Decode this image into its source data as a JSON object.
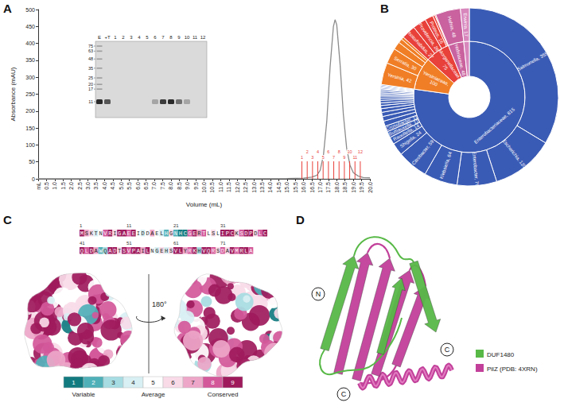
{
  "chart_data": [
    {
      "panel": "A",
      "type": "line",
      "x_label": "Volume (mL)",
      "y_label": "Absorbance (mAU)",
      "x": [
        0,
        5,
        10,
        15,
        16,
        16.5,
        16.8,
        17,
        17.2,
        17.4,
        17.6,
        17.8,
        17.9,
        18,
        18.2,
        18.4,
        18.6,
        18.8,
        19,
        19.3,
        19.6,
        20
      ],
      "values": [
        0,
        0.5,
        0.5,
        1,
        2,
        5,
        10,
        25,
        70,
        170,
        330,
        450,
        470,
        455,
        340,
        190,
        90,
        40,
        18,
        8,
        4,
        3
      ],
      "color": "#8c8c8c",
      "xlim": [
        0,
        20
      ],
      "xticks": [
        {
          "value": 0,
          "label": "mL"
        },
        0.5,
        {
          "value": 1,
          "label": "1.0"
        },
        1.5,
        {
          "value": 2,
          "label": "2.0"
        },
        2.5,
        {
          "value": 3,
          "label": "3.0"
        },
        3.5,
        {
          "value": 4,
          "label": "4.0"
        },
        4.5,
        {
          "value": 5,
          "label": "5.0"
        },
        5.5,
        {
          "value": 6,
          "label": "6.0"
        },
        6.5,
        {
          "value": 7,
          "label": "7.0"
        },
        7.5,
        {
          "value": 8,
          "label": "8.0"
        },
        8.5,
        {
          "value": 9,
          "label": "9.0"
        },
        9.5,
        {
          "value": 10,
          "label": "10.0"
        },
        10.5,
        {
          "value": 11,
          "label": "11.0"
        },
        11.5,
        {
          "value": 12,
          "label": "12.0"
        },
        12.5,
        {
          "value": 13,
          "label": "13.0"
        },
        13.5,
        {
          "value": 14,
          "label": "14.0"
        },
        14.5,
        {
          "value": 15,
          "label": "15.0"
        },
        15.5,
        {
          "value": 16,
          "label": "16.0"
        },
        16.5,
        {
          "value": 17,
          "label": "17.0"
        },
        17.5,
        {
          "value": 18,
          "label": "18.0"
        },
        18.5,
        {
          "value": 19,
          "label": "19.0"
        },
        19.5,
        {
          "value": 20,
          "label": "20.0"
        }
      ],
      "ylim": [
        0,
        500
      ],
      "yticks": [
        0,
        50,
        100,
        150,
        200,
        250,
        300,
        350,
        400,
        450,
        500
      ],
      "grid": false,
      "fractions": {
        "labels": [
          "1",
          "2",
          "3",
          "4",
          "5",
          "6",
          "7",
          "8",
          "9",
          "10",
          "11",
          "12"
        ],
        "x": [
          15.9,
          16.22,
          16.54,
          16.86,
          17.18,
          17.5,
          17.82,
          18.14,
          18.46,
          18.78,
          19.1,
          19.42
        ],
        "color": "#e8403a"
      },
      "inset_gel": {
        "lanes": [
          "E",
          "+T",
          "1",
          "2",
          "3",
          "4",
          "5",
          "6",
          "7",
          "8",
          "9",
          "10",
          "11",
          "12"
        ],
        "band_intensity": [
          1,
          0.75,
          0,
          0,
          0,
          0,
          0,
          0.3,
          0.9,
          1,
          0.6,
          0.3,
          0,
          0
        ],
        "markers": [
          75,
          63,
          48,
          35,
          25,
          20,
          17,
          11
        ]
      }
    },
    {
      "panel": "B",
      "type": "sunburst",
      "data_labels": true,
      "tree": [
        {
          "name": "Enterobacteriaceae",
          "value": 815,
          "label": "Enterobacteriaceae, 815",
          "color": "#3a5bb5",
          "children": [
            {
              "name": "Salmonella",
              "value": 355,
              "label": "Salmonella, 355"
            },
            {
              "name": "Escherichia",
              "value": 120,
              "label": "Escherichia, 120"
            },
            {
              "name": "Enterobacter",
              "value": 76,
              "label": "Enterobacter, 76"
            },
            {
              "name": "Klebsiella",
              "value": 64,
              "label": "Klebsiella, 64"
            },
            {
              "name": "Citrobacter",
              "value": 59,
              "label": "Citrobacter, 59"
            },
            {
              "name": "Shigella",
              "value": 24,
              "label": "Shigella, 24"
            },
            {
              "name": "Raoultella",
              "value": 14,
              "label": "Raoultella, 14"
            },
            {
              "name": "Buttiauxella",
              "value": 12,
              "label": "Buttiauxella, 12"
            },
            {
              "name": "Cronobacter",
              "value": 11,
              "label": "Cronobacter, 11"
            },
            {
              "name": null,
              "value": 10
            },
            {
              "name": null,
              "value": 9
            },
            {
              "name": null,
              "value": 8
            },
            {
              "name": null,
              "value": 7
            },
            {
              "name": null,
              "value": 6
            },
            {
              "name": null,
              "value": 5
            },
            {
              "name": null,
              "value": 5
            },
            {
              "name": null,
              "value": 4
            },
            {
              "name": null,
              "value": 4
            },
            {
              "name": null,
              "value": 3
            },
            {
              "name": null,
              "value": 3
            },
            {
              "name": null,
              "value": 3
            },
            {
              "name": null,
              "value": 3
            },
            {
              "name": null,
              "value": 2
            },
            {
              "name": null,
              "value": 2
            },
            {
              "name": null,
              "value": 2
            },
            {
              "name": null,
              "value": 2
            },
            {
              "name": null,
              "value": 2
            }
          ]
        },
        {
          "name": "Yersiniaceae",
          "value": 100,
          "label": "Yersiniaceae, 100",
          "color": "#f07e26",
          "children": [
            {
              "name": "Yersinia",
              "value": 42,
              "label": "Yersinia, 42"
            },
            {
              "name": "Serratia",
              "value": 30,
              "label": "Serratia, 30"
            },
            {
              "name": null,
              "value": 15
            },
            {
              "name": null,
              "value": 8
            },
            {
              "name": null,
              "value": 5
            }
          ]
        },
        {
          "name": "Morganellaceae",
          "value": 75,
          "label": "Morganellaceae, 75",
          "color": "#e8403a",
          "children": [
            {
              "name": "Photorhabdus",
              "value": 27,
              "label": "Photorhabdus, 27"
            },
            {
              "name": "Providencia",
              "value": 26,
              "label": "Providencia, 26"
            },
            {
              "name": "Proteus",
              "value": 16,
              "label": "Proteus, 16"
            },
            {
              "name": null,
              "value": 4
            },
            {
              "name": null,
              "value": 2
            }
          ]
        },
        {
          "name": "Hafniaceae",
          "value": 48,
          "label": "Hafniaceae, 48",
          "color": "#c9629f",
          "children": [
            {
              "name": "Hafnia",
              "value": 48,
              "label": "Hafnia, 48"
            }
          ]
        },
        {
          "name": null,
          "value": 17,
          "color": "#d887bd",
          "children": [
            {
              "name": "Erwinia",
              "value": 17,
              "label": "Erwinia, 17"
            }
          ]
        }
      ]
    }
  ],
  "panel_c": {
    "panel": "C",
    "position_labels": [
      1,
      11,
      21,
      31,
      41,
      51,
      61,
      71
    ],
    "sequence": "MSKTNVRIGAEEIDDAELHGNHCGERTLSLIPCKSDPDLCQLDAWQADTSVPAILNGEHSVLYRKHVQRSDAVMRLA",
    "grades": [
      9,
      7,
      6,
      4,
      5,
      8,
      9,
      6,
      9,
      9,
      8,
      9,
      5,
      4,
      5,
      7,
      5,
      4,
      2,
      6,
      2,
      1,
      1,
      8,
      9,
      7,
      8,
      5,
      6,
      5,
      9,
      9,
      9,
      6,
      8,
      9,
      9,
      6,
      8,
      9,
      9,
      8,
      9,
      7,
      2,
      3,
      9,
      9,
      6,
      9,
      8,
      9,
      9,
      7,
      9,
      5,
      4,
      6,
      4,
      6,
      9,
      9,
      7,
      8,
      9,
      3,
      9,
      9,
      8,
      6,
      8,
      6,
      9,
      8,
      9,
      9,
      8
    ],
    "rotation": "180°",
    "scale": {
      "grades": [
        1,
        2,
        3,
        4,
        5,
        6,
        7,
        8,
        9
      ],
      "colors": [
        "#127b80",
        "#4fb0b8",
        "#a6dce2",
        "#d8eff3",
        "#ffffff",
        "#f9dbe8",
        "#eda6c8",
        "#d3589a",
        "#9e1a5c"
      ],
      "labels": [
        {
          "value": 1.5,
          "label": "Variable"
        },
        {
          "value": 5,
          "label": "Average"
        },
        {
          "value": 8.5,
          "label": "Conserved"
        }
      ]
    }
  },
  "panel_d": {
    "panel": "D",
    "legend": [
      {
        "name": "DUF1480",
        "color": "#58b947"
      },
      {
        "name": "PilZ (PDB: 4XRN)",
        "color": "#c2409a"
      }
    ],
    "termini": [
      "N",
      "C",
      "C"
    ]
  }
}
